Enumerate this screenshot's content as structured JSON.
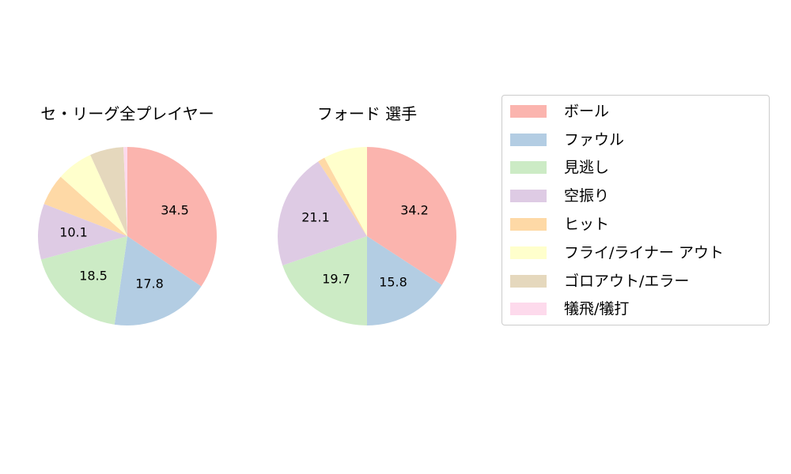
{
  "chart_data": [
    {
      "type": "pie",
      "title": "セ・リーグ全プレイヤー",
      "categories": [
        "ボール",
        "ファウル",
        "見逃し",
        "空振り",
        "ヒット",
        "フライ/ライナー アウト",
        "ゴロアウト/エラー",
        "犠飛/犠打"
      ],
      "values": [
        34.5,
        17.8,
        18.5,
        10.1,
        5.7,
        6.6,
        6.1,
        0.7
      ],
      "labels_shown": [
        "34.5",
        "17.8",
        "18.5",
        "10.1"
      ],
      "start_angle": 90,
      "direction": "clockwise"
    },
    {
      "type": "pie",
      "title": "フォード  選手",
      "categories": [
        "ボール",
        "ファウル",
        "見逃し",
        "空振り",
        "ヒット",
        "フライ/ライナー アウト",
        "ゴロアウト/エラー",
        "犠飛/犠打"
      ],
      "values": [
        34.2,
        15.8,
        19.7,
        21.1,
        1.3,
        7.9,
        0,
        0
      ],
      "labels_shown": [
        "34.2",
        "15.8",
        "19.7",
        "21.1"
      ],
      "start_angle": 90,
      "direction": "clockwise"
    }
  ],
  "titles": {
    "left": "セ・リーグ全プレイヤー",
    "right": "フォード  選手"
  },
  "labels": {
    "left": [
      "34.5",
      "17.8",
      "18.5",
      "10.1"
    ],
    "right": [
      "34.2",
      "15.8",
      "19.7",
      "21.1"
    ]
  },
  "legend": {
    "items": [
      {
        "label": "ボール",
        "color": "#fbb4ae"
      },
      {
        "label": "ファウル",
        "color": "#b3cde3"
      },
      {
        "label": "見逃し",
        "color": "#ccebc5"
      },
      {
        "label": "空振り",
        "color": "#decbe4"
      },
      {
        "label": "ヒット",
        "color": "#fed9a6"
      },
      {
        "label": "フライ/ライナー アウト",
        "color": "#ffffcc"
      },
      {
        "label": "ゴロアウト/エラー",
        "color": "#e5d8bd"
      },
      {
        "label": "犠飛/犠打",
        "color": "#fddaec"
      }
    ]
  }
}
